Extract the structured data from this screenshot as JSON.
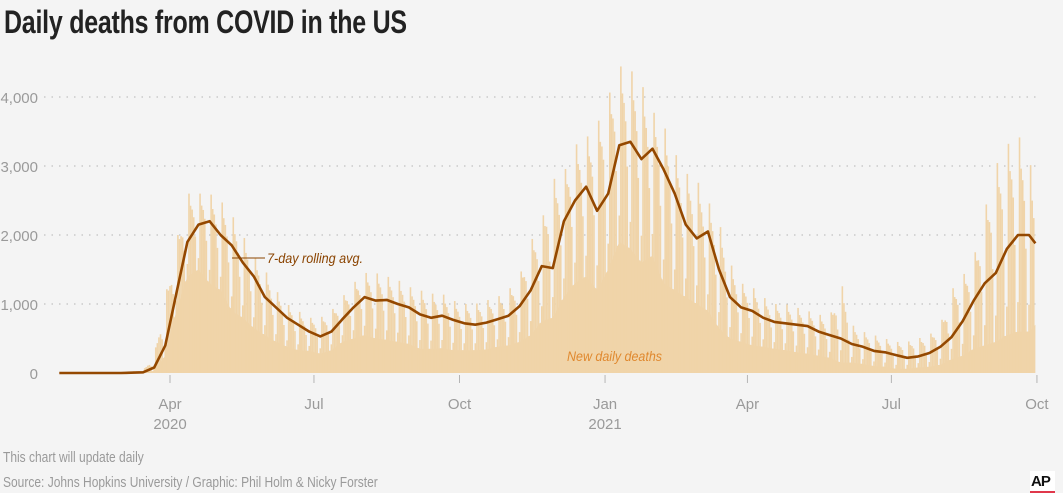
{
  "title": "Daily deaths from COVID in the US",
  "footer": {
    "note": "This chart will update daily",
    "source": "Source: Johns Hopkins University / Graphic: Phil Holm & Nicky Forster"
  },
  "logo": "AP",
  "chart_data": {
    "type": "bar+line",
    "title": "Daily deaths from COVID in the US",
    "ylim": [
      0,
      4000
    ],
    "yticks": [
      0,
      1000,
      2000,
      3000,
      4000
    ],
    "ytick_labels": [
      "0",
      "1,000",
      "2,000",
      "3,000",
      "4,000"
    ],
    "grid": "horizontal dotted",
    "xticks": [
      {
        "date": "2020-04-01",
        "label": "Apr",
        "year": "2020"
      },
      {
        "date": "2020-07-01",
        "label": "Jul",
        "year": ""
      },
      {
        "date": "2020-10-01",
        "label": "Oct",
        "year": ""
      },
      {
        "date": "2021-01-01",
        "label": "Jan",
        "year": "2021"
      },
      {
        "date": "2021-04-01",
        "label": "Apr",
        "year": ""
      },
      {
        "date": "2021-07-01",
        "label": "Jul",
        "year": ""
      },
      {
        "date": "2021-10-01",
        "label": "Oct",
        "year": ""
      }
    ],
    "series_labels": {
      "bars": "New daily deaths",
      "line": "7-day rolling avg."
    },
    "colors": {
      "bars": "#f0d4a9",
      "line": "#944800",
      "bar_label": "#e0892f",
      "line_label": "#8a4300"
    },
    "columns": [
      "week_of",
      "rolling_avg",
      "daily_max",
      "daily_min"
    ],
    "weekly": [
      [
        "2020-01-22",
        0,
        0,
        0
      ],
      [
        "2020-03-01",
        0,
        5,
        0
      ],
      [
        "2020-03-15",
        10,
        40,
        0
      ],
      [
        "2020-03-22",
        80,
        250,
        30
      ],
      [
        "2020-03-29",
        400,
        1100,
        250
      ],
      [
        "2020-04-05",
        1150,
        1900,
        900
      ],
      [
        "2020-04-12",
        1900,
        2600,
        1400
      ],
      [
        "2020-04-19",
        2150,
        2600,
        1500
      ],
      [
        "2020-04-26",
        2200,
        2600,
        1300
      ],
      [
        "2020-05-03",
        2000,
        2500,
        1200
      ],
      [
        "2020-05-10",
        1850,
        2300,
        900
      ],
      [
        "2020-05-17",
        1600,
        2000,
        800
      ],
      [
        "2020-05-24",
        1400,
        1700,
        650
      ],
      [
        "2020-05-31",
        1100,
        1500,
        550
      ],
      [
        "2020-06-07",
        950,
        1200,
        450
      ],
      [
        "2020-06-14",
        800,
        1000,
        380
      ],
      [
        "2020-06-21",
        700,
        900,
        330
      ],
      [
        "2020-06-28",
        600,
        800,
        320
      ],
      [
        "2020-07-05",
        530,
        800,
        280
      ],
      [
        "2020-07-12",
        600,
        900,
        330
      ],
      [
        "2020-07-19",
        780,
        1100,
        450
      ],
      [
        "2020-07-26",
        950,
        1300,
        500
      ],
      [
        "2020-08-02",
        1100,
        1450,
        550
      ],
      [
        "2020-08-09",
        1050,
        1450,
        500
      ],
      [
        "2020-08-16",
        1060,
        1400,
        480
      ],
      [
        "2020-08-23",
        1000,
        1350,
        450
      ],
      [
        "2020-08-30",
        950,
        1250,
        420
      ],
      [
        "2020-09-06",
        850,
        1200,
        350
      ],
      [
        "2020-09-13",
        800,
        1150,
        350
      ],
      [
        "2020-09-20",
        830,
        1150,
        360
      ],
      [
        "2020-09-27",
        770,
        1050,
        330
      ],
      [
        "2020-10-04",
        720,
        1000,
        330
      ],
      [
        "2020-10-11",
        700,
        1000,
        330
      ],
      [
        "2020-10-18",
        730,
        1050,
        340
      ],
      [
        "2020-10-25",
        780,
        1100,
        380
      ],
      [
        "2020-11-01",
        830,
        1200,
        400
      ],
      [
        "2020-11-08",
        970,
        1400,
        450
      ],
      [
        "2020-11-15",
        1200,
        1900,
        550
      ],
      [
        "2020-11-22",
        1550,
        2200,
        750
      ],
      [
        "2020-11-29",
        1520,
        2800,
        800
      ],
      [
        "2020-12-06",
        2200,
        2900,
        1100
      ],
      [
        "2020-12-13",
        2500,
        3300,
        1300
      ],
      [
        "2020-12-20",
        2700,
        3400,
        1400
      ],
      [
        "2020-12-27",
        2350,
        3600,
        1200
      ],
      [
        "2021-01-03",
        2600,
        4000,
        1500
      ],
      [
        "2021-01-10",
        3300,
        4450,
        1900
      ],
      [
        "2021-01-17",
        3350,
        4400,
        1800
      ],
      [
        "2021-01-24",
        3100,
        4200,
        1600
      ],
      [
        "2021-01-31",
        3250,
        3800,
        1700
      ],
      [
        "2021-02-07",
        2950,
        3600,
        1300
      ],
      [
        "2021-02-14",
        2600,
        3200,
        1200
      ],
      [
        "2021-02-21",
        2150,
        2900,
        1100
      ],
      [
        "2021-02-28",
        1950,
        2800,
        1000
      ],
      [
        "2021-03-07",
        2050,
        2500,
        900
      ],
      [
        "2021-03-14",
        1500,
        2200,
        650
      ],
      [
        "2021-03-21",
        1100,
        1600,
        500
      ],
      [
        "2021-03-28",
        950,
        1300,
        450
      ],
      [
        "2021-04-04",
        900,
        1250,
        400
      ],
      [
        "2021-04-11",
        800,
        1100,
        380
      ],
      [
        "2021-04-18",
        740,
        1000,
        350
      ],
      [
        "2021-04-25",
        720,
        1000,
        330
      ],
      [
        "2021-05-02",
        700,
        950,
        300
      ],
      [
        "2021-05-09",
        680,
        900,
        280
      ],
      [
        "2021-05-16",
        600,
        850,
        250
      ],
      [
        "2021-05-23",
        550,
        800,
        220
      ],
      [
        "2021-05-30",
        500,
        1350,
        150
      ],
      [
        "2021-06-06",
        420,
        700,
        150
      ],
      [
        "2021-06-13",
        380,
        600,
        130
      ],
      [
        "2021-06-20",
        320,
        550,
        100
      ],
      [
        "2021-06-27",
        300,
        500,
        90
      ],
      [
        "2021-07-04",
        260,
        450,
        60
      ],
      [
        "2021-07-11",
        220,
        450,
        60
      ],
      [
        "2021-07-18",
        240,
        500,
        80
      ],
      [
        "2021-07-25",
        290,
        550,
        90
      ],
      [
        "2021-08-01",
        380,
        700,
        120
      ],
      [
        "2021-08-08",
        520,
        1200,
        200
      ],
      [
        "2021-08-15",
        750,
        1400,
        250
      ],
      [
        "2021-08-22",
        1050,
        1650,
        350
      ],
      [
        "2021-08-29",
        1300,
        2350,
        400
      ],
      [
        "2021-09-05",
        1450,
        3000,
        450
      ],
      [
        "2021-09-12",
        1800,
        3300,
        550
      ],
      [
        "2021-09-19",
        2000,
        3450,
        600
      ],
      [
        "2021-09-26",
        2000,
        3200,
        600
      ],
      [
        "2021-09-30",
        1880,
        2450,
        700
      ]
    ]
  }
}
